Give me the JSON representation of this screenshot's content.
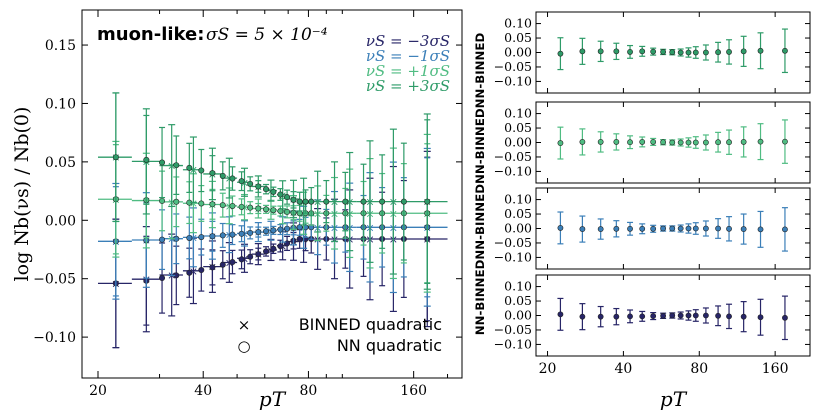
{
  "chart_data": [
    {
      "type": "scatter",
      "panel": "main",
      "title": "muon-like: σS = 5 × 10⁻⁴",
      "title_prefix": "muon-like:",
      "title_math": "σS = 5 × 10⁻⁴",
      "xlabel": "pT",
      "ylabel": "log Nb(νs) / Nb(0)",
      "x_scale": "log",
      "xlim": [
        18,
        220
      ],
      "ylim": [
        -0.135,
        0.18
      ],
      "xticks": [
        20,
        40,
        80,
        160
      ],
      "xtick_labels": [
        "20",
        "40",
        "80",
        "160"
      ],
      "yticks": [
        -0.1,
        -0.05,
        0.0,
        0.05,
        0.1,
        0.15
      ],
      "ytick_labels": [
        "−0.10",
        "−0.05",
        "0.00",
        "0.05",
        "0.10",
        "0.15"
      ],
      "x_nn": [
        22.5,
        27.5,
        30.5,
        33.5,
        36.5,
        39.5,
        42.5,
        45.5,
        48.5,
        51.5,
        54.5,
        57.5,
        60.5,
        63.5,
        66.5,
        69.5,
        72.5,
        75.5,
        78.5,
        81.5,
        90,
        102,
        115,
        130,
        150,
        175
      ],
      "x_bins": [
        22.5,
        27.5,
        32.5,
        37.5,
        42.5,
        47.5,
        52.5,
        57.5,
        62.5,
        67.5,
        72.5,
        77.5,
        85,
        95,
        105,
        120,
        140,
        175
      ],
      "x_bin_halfwidths": [
        2.5,
        2.5,
        2.5,
        2.5,
        2.5,
        2.5,
        2.5,
        2.5,
        2.5,
        2.5,
        2.5,
        2.5,
        5,
        5,
        5,
        10,
        10,
        25
      ],
      "nn_err_shape": [
        0.055,
        0.038,
        0.03,
        0.025,
        0.021,
        0.018,
        0.015,
        0.012,
        0.01,
        0.008,
        0.006,
        0.005,
        0.004,
        0.004,
        0.005,
        0.006,
        0.007,
        0.008,
        0.01,
        0.012,
        0.018,
        0.025,
        0.032,
        0.04,
        0.05,
        0.07
      ],
      "series": [
        {
          "name": "νS = −3σS",
          "color": "#272567",
          "base": -0.054,
          "end": -0.016,
          "nn_err_scale": 1.0,
          "bin_err_scale": 1.0
        },
        {
          "name": "νS = −1σS",
          "color": "#3b7fb8",
          "base": -0.018,
          "end": -0.006,
          "nn_err_scale": 0.85,
          "bin_err_scale": 0.9
        },
        {
          "name": "νS = +1σS",
          "color": "#4fbc82",
          "base": 0.018,
          "end": 0.006,
          "nn_err_scale": 0.85,
          "bin_err_scale": 0.9
        },
        {
          "name": "νS = +3σS",
          "color": "#2e9b68",
          "base": 0.054,
          "end": 0.016,
          "nn_err_scale": 1.0,
          "bin_err_scale": 1.0
        }
      ],
      "bin_err_shape": [
        0.055,
        0.045,
        0.035,
        0.028,
        0.022,
        0.017,
        0.012,
        0.009,
        0.009,
        0.012,
        0.016,
        0.02,
        0.026,
        0.034,
        0.042,
        0.052,
        0.062,
        0.075
      ],
      "legend_location": "top-right",
      "marker_legend": [
        {
          "marker": "×",
          "label": "BINNED  quadratic"
        },
        {
          "marker": "○",
          "label": "NN  quadratic"
        }
      ]
    },
    {
      "type": "scatter",
      "panel": "residuals",
      "shared_ylabel": "NN-BINNEDNN-BINNEDNN-BINNEDNN-BINNED",
      "xlabel": "pT",
      "xticks": [
        20,
        40,
        80,
        160
      ],
      "xtick_labels": [
        "20",
        "40",
        "80",
        "160"
      ],
      "ylim": [
        -0.14,
        0.14
      ],
      "yticks": [
        -0.1,
        -0.05,
        0.0,
        0.05,
        0.1
      ],
      "ytick_labels": [
        "−0.10",
        "−0.05",
        "0.00",
        "0.05",
        "0.10"
      ],
      "subplots": [
        {
          "color": "#2e9b68",
          "offsets": [
            -0.004,
            0.004,
            0.004,
            0.004,
            0.002,
            0.004,
            0.003,
            0.002,
            0.001,
            0.0,
            0.0,
            0.0,
            0.0,
            0.001,
            0.002,
            0.004,
            0.006,
            0.006
          ]
        },
        {
          "color": "#4fbc82",
          "offsets": [
            -0.002,
            0.002,
            0.002,
            0.002,
            0.001,
            0.002,
            0.002,
            0.001,
            0.0,
            0.0,
            0.0,
            0.0,
            0.0,
            0.001,
            0.001,
            0.002,
            0.003,
            0.003
          ]
        },
        {
          "color": "#3b7fb8",
          "offsets": [
            0.002,
            -0.002,
            -0.002,
            -0.001,
            -0.001,
            -0.001,
            -0.001,
            0.0,
            0.0,
            0.0,
            0.0,
            0.0,
            0.0,
            0.0,
            -0.001,
            -0.002,
            -0.003,
            -0.003
          ]
        },
        {
          "color": "#272567",
          "offsets": [
            0.004,
            -0.004,
            -0.004,
            -0.004,
            -0.003,
            -0.003,
            -0.002,
            -0.001,
            0.0,
            0.0,
            0.0,
            0.0,
            0.0,
            -0.001,
            -0.003,
            -0.004,
            -0.006,
            -0.008
          ]
        }
      ]
    }
  ]
}
